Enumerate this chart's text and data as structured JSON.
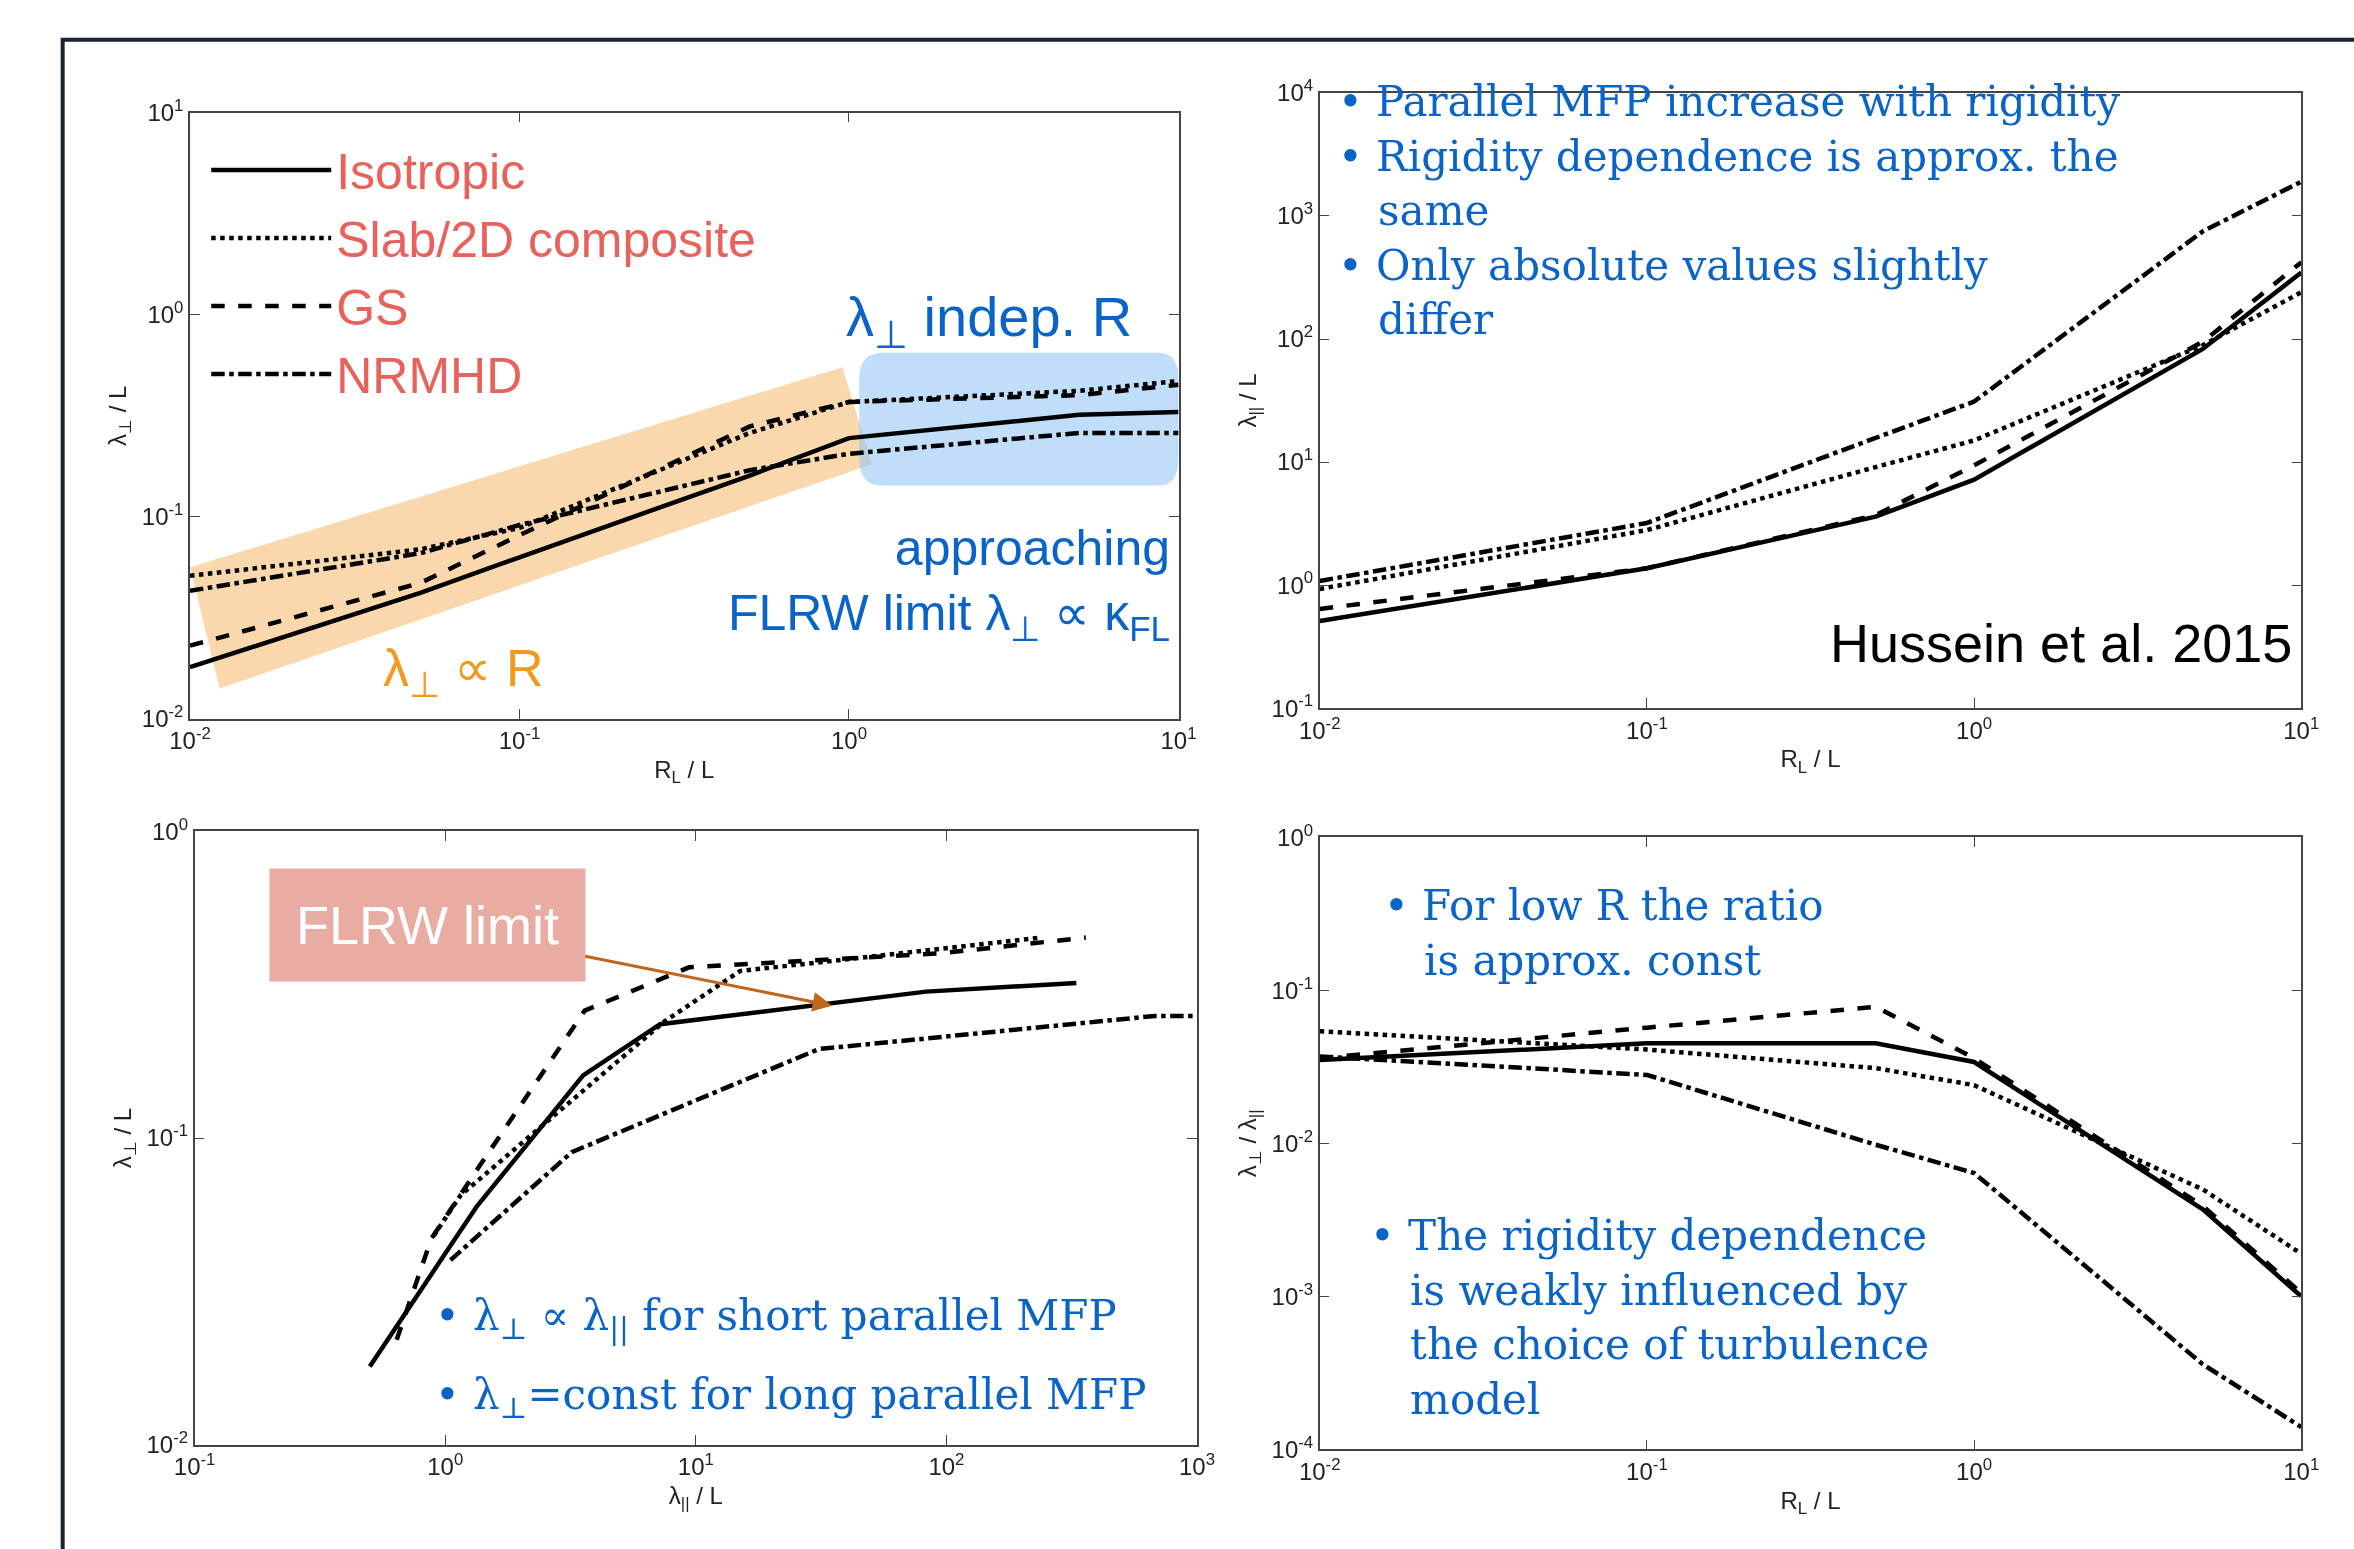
{
  "chart_data": [
    {
      "type": "line",
      "xlabel": "R$_{L}$ / L",
      "ylabel": "λ$_{⊥}$ / L",
      "log": "xy",
      "legend": "top left",
      "grid": false,
      "xlim": [
        0.01,
        10
      ],
      "ylim": [
        0.01,
        10
      ],
      "xticks": [
        {
          "value": 0.01,
          "label": "10$^{-2}$"
        },
        {
          "value": 0.1,
          "label": "10$^{-1}$"
        },
        {
          "value": 1,
          "label": "10$^{0}$"
        },
        {
          "value": 10,
          "label": "10$^{1}$"
        }
      ],
      "yticks": [
        {
          "value": 0.01,
          "label": "10$^{-2}$"
        },
        {
          "value": 0.1,
          "label": "10$^{-1}$"
        },
        {
          "value": 1,
          "label": "10$^{0}$"
        },
        {
          "value": 10,
          "label": "10$^{1}$"
        }
      ],
      "x": [
        0.01,
        0.05,
        0.1,
        0.5,
        1,
        5,
        10
      ],
      "series": [
        {
          "name": "Isotropic",
          "color": "#000000",
          "line_style": "solid",
          "values": [
            0.018,
            0.042,
            0.063,
            0.16,
            0.245,
            0.32,
            0.33
          ]
        },
        {
          "name": "Slab/2D composite",
          "color": "#000000",
          "line_style": "dotted",
          "values": [
            0.051,
            0.069,
            0.088,
            0.26,
            0.37,
            0.42,
            0.47
          ]
        },
        {
          "name": "GS",
          "color": "#000000",
          "line_style": "dashed",
          "values": [
            0.023,
            0.047,
            0.081,
            0.28,
            0.37,
            0.4,
            0.45
          ]
        },
        {
          "name": "NRMHD",
          "color": "#000000",
          "line_style": "dashdot",
          "values": [
            0.043,
            0.066,
            0.091,
            0.17,
            0.205,
            0.26,
            0.26
          ]
        }
      ],
      "annotations": [
        "λ$_{⊥}$ indep. R",
        "approaching\nFLRW limit λ$_{⊥}$ ∝ κ$_{FL}$",
        "λ$_{⊥}$ ∝ R"
      ]
    },
    {
      "type": "line",
      "xlabel": "R$_{L}$ / L",
      "ylabel": "λ$_{||}$ / L",
      "log": "xy",
      "grid": false,
      "xlim": [
        0.01,
        10
      ],
      "ylim": [
        0.1,
        10000
      ],
      "xticks": [
        {
          "value": 0.01,
          "label": "10$^{-2}$"
        },
        {
          "value": 0.1,
          "label": "10$^{-1}$"
        },
        {
          "value": 1,
          "label": "10$^{0}$"
        },
        {
          "value": 10,
          "label": "10$^{1}$"
        }
      ],
      "yticks": [
        {
          "value": 0.1,
          "label": "10$^{-1}$"
        },
        {
          "value": 1,
          "label": "10$^{0}$"
        },
        {
          "value": 10,
          "label": "10$^{1}$"
        },
        {
          "value": 100,
          "label": "10$^{2}$"
        },
        {
          "value": 1000,
          "label": "10$^{3}$"
        },
        {
          "value": 10000,
          "label": "10$^{4}$"
        }
      ],
      "x": [
        0.01,
        0.1,
        0.5,
        1,
        5,
        10
      ],
      "series": [
        {
          "color": "#000000",
          "line_style": "solid",
          "values": [
            0.51,
            1.37,
            3.6,
            7.2,
            83,
            347
          ]
        },
        {
          "color": "#000000",
          "line_style": "dotted",
          "values": [
            0.93,
            2.8,
            9.1,
            15,
            89,
            240
          ]
        },
        {
          "color": "#000000",
          "line_style": "dashed",
          "values": [
            0.64,
            1.37,
            3.7,
            9.4,
            95,
            420
          ]
        },
        {
          "color": "#000000",
          "line_style": "dashdot",
          "values": [
            1.08,
            3.2,
            15.7,
            31,
            750,
            1900
          ]
        }
      ],
      "annotations": [
        "• Parallel MFP increase with rigidity\n• Rigidity dependence is approx. the\n   same\n• Only absolute values slightly\n   differ",
        "Hussein et al. 2015"
      ]
    },
    {
      "type": "line",
      "xlabel": "λ$_{||}$ / L",
      "ylabel": "λ$_{⊥}$ / L",
      "log": "xy",
      "grid": false,
      "xlim": [
        0.1,
        1000
      ],
      "ylim": [
        0.01,
        1
      ],
      "xticks": [
        {
          "value": 0.1,
          "label": "10$^{-1}$"
        },
        {
          "value": 1,
          "label": "10$^{0}$"
        },
        {
          "value": 10,
          "label": "10$^{1}$"
        },
        {
          "value": 100,
          "label": "10$^{2}$"
        },
        {
          "value": 1000,
          "label": "10$^{3}$"
        }
      ],
      "yticks": [
        {
          "value": 0.01,
          "label": "10$^{-2}$"
        },
        {
          "value": 0.1,
          "label": "10$^{-1}$"
        },
        {
          "value": 1,
          "label": "10$^{0}$"
        }
      ],
      "series": [
        {
          "color": "#000000",
          "line_style": "solid",
          "x": [
            0.5,
            1.0,
            1.34,
            3.55,
            7.2,
            83,
            330
          ],
          "values": [
            0.018,
            0.042,
            0.06,
            0.16,
            0.235,
            0.3,
            0.32
          ]
        },
        {
          "color": "#000000",
          "line_style": "dotted",
          "x": [
            0.9,
            1.15,
            7.5,
            15,
            240
          ],
          "values": [
            0.048,
            0.065,
            0.24,
            0.35,
            0.45
          ]
        },
        {
          "color": "#000000",
          "line_style": "dashed",
          "x": [
            0.64,
            0.88,
            1.37,
            3.6,
            9.4,
            95,
            360
          ],
          "values": [
            0.022,
            0.047,
            0.081,
            0.26,
            0.36,
            0.4,
            0.45
          ]
        },
        {
          "color": "#000000",
          "line_style": "dashdot",
          "x": [
            1.05,
            3.2,
            31,
            680,
            1000
          ],
          "values": [
            0.04,
            0.09,
            0.195,
            0.25,
            0.25
          ]
        }
      ],
      "annotations": [
        {
          "text": "FLRW limit",
          "x": 35,
          "y": 0.27
        },
        "• λ$_{⊥}$ ∝ λ$_{||}$ for short parallel MFP",
        "• λ$_{⊥}$=const for long parallel MFP"
      ]
    },
    {
      "type": "line",
      "xlabel": "R$_{L}$ / L",
      "ylabel": "λ$_{⊥}$ / λ$_{||}$",
      "log": "xy",
      "grid": false,
      "xlim": [
        0.01,
        10
      ],
      "ylim": [
        0.0001,
        1
      ],
      "xticks": [
        {
          "value": 0.01,
          "label": "10$^{-2}$"
        },
        {
          "value": 0.1,
          "label": "10$^{-1}$"
        },
        {
          "value": 1,
          "label": "10$^{0}$"
        },
        {
          "value": 10,
          "label": "10$^{1}$"
        }
      ],
      "yticks": [
        {
          "value": 0.0001,
          "label": "10$^{-4}$"
        },
        {
          "value": 0.001,
          "label": "10$^{-3}$"
        },
        {
          "value": 0.01,
          "label": "10$^{-2}$"
        },
        {
          "value": 0.1,
          "label": "10$^{-1}$"
        },
        {
          "value": 1,
          "label": "10$^{0}$"
        }
      ],
      "x": [
        0.01,
        0.1,
        0.5,
        1,
        5,
        10
      ],
      "series": [
        {
          "color": "#000000",
          "line_style": "solid",
          "values": [
            0.035,
            0.045,
            0.045,
            0.034,
            0.0037,
            0.001
          ]
        },
        {
          "color": "#000000",
          "line_style": "dotted",
          "values": [
            0.054,
            0.041,
            0.031,
            0.024,
            0.005,
            0.0019
          ]
        },
        {
          "color": "#000000",
          "line_style": "dashed",
          "values": [
            0.036,
            0.057,
            0.078,
            0.036,
            0.0039,
            0.00105
          ]
        },
        {
          "color": "#000000",
          "line_style": "dashdot",
          "values": [
            0.037,
            0.028,
            0.0098,
            0.0064,
            0.00036,
            0.00014
          ]
        }
      ],
      "annotations": [
        "• For low R the ratio\n   is approx. const",
        "• The rigidity dependence\n   is weakly influenced by\n   the choice of turbulence\n   model"
      ]
    }
  ]
}
